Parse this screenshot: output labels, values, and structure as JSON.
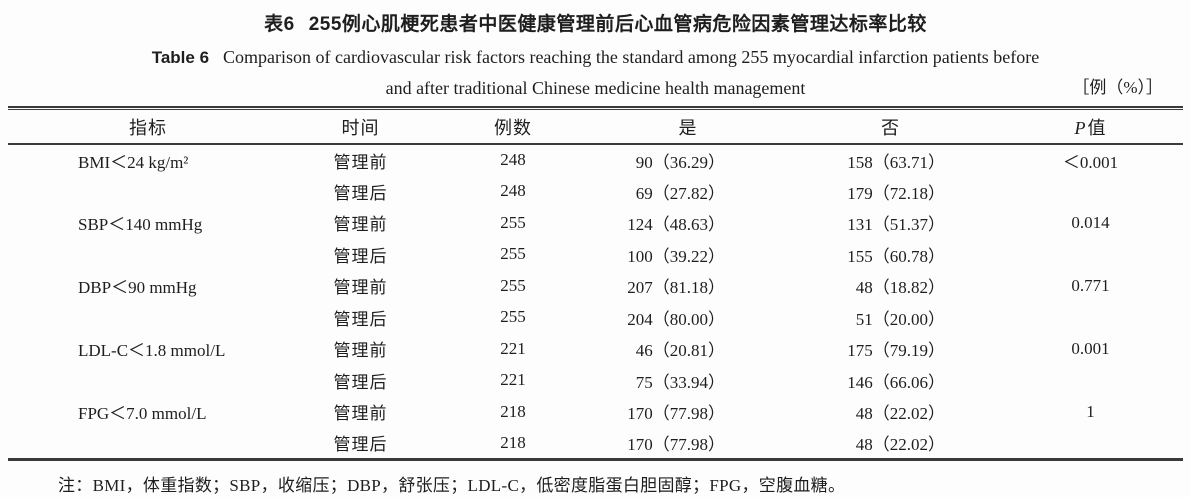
{
  "title": {
    "zh_label": "表6",
    "zh_text": "255例心肌梗死患者中医健康管理前后心血管病危险因素管理达标率比较",
    "en_label": "Table 6",
    "en_text1": "Comparison of cardiovascular risk factors reaching the standard among 255 myocardial infarction patients before",
    "en_text2": "and after traditional Chinese medicine health management",
    "unit": "［例（%）］"
  },
  "table": {
    "headers": {
      "indicator": "指标",
      "time": "时间",
      "n": "例数",
      "yes": "是",
      "no": "否",
      "p_symbol": "P",
      "p_suffix": "值"
    },
    "rows": [
      {
        "indicator": "BMI＜24 kg/m²",
        "time": "管理前",
        "n": "248",
        "yes": "90（36.29）",
        "no": "158（63.71）",
        "p": "＜0.001"
      },
      {
        "indicator": "",
        "time": "管理后",
        "n": "248",
        "yes": "69（27.82）",
        "no": "179（72.18）",
        "p": ""
      },
      {
        "indicator": "SBP＜140 mmHg",
        "time": "管理前",
        "n": "255",
        "yes": "124（48.63）",
        "no": "131（51.37）",
        "p": "0.014"
      },
      {
        "indicator": "",
        "time": "管理后",
        "n": "255",
        "yes": "100（39.22）",
        "no": "155（60.78）",
        "p": ""
      },
      {
        "indicator": "DBP＜90 mmHg",
        "time": "管理前",
        "n": "255",
        "yes": "207（81.18）",
        "no": "48（18.82）",
        "p": "0.771"
      },
      {
        "indicator": "",
        "time": "管理后",
        "n": "255",
        "yes": "204（80.00）",
        "no": "51（20.00）",
        "p": ""
      },
      {
        "indicator": "LDL-C＜1.8 mmol/L",
        "time": "管理前",
        "n": "221",
        "yes": "46（20.81）",
        "no": "175（79.19）",
        "p": "0.001"
      },
      {
        "indicator": "",
        "time": "管理后",
        "n": "221",
        "yes": "75（33.94）",
        "no": "146（66.06）",
        "p": ""
      },
      {
        "indicator": "FPG＜7.0 mmol/L",
        "time": "管理前",
        "n": "218",
        "yes": "170（77.98）",
        "no": "48（22.02）",
        "p": "1"
      },
      {
        "indicator": "",
        "time": "管理后",
        "n": "218",
        "yes": "170（77.98）",
        "no": "48（22.02）",
        "p": ""
      }
    ]
  },
  "footnote": {
    "text": "注：BMI，体重指数；SBP，收缩压；DBP，舒张压；LDL-C，低密度脂蛋白胆固醇；FPG，空腹血糖。"
  },
  "colors": {
    "text": "#1e1e1e",
    "rule": "#3a3a3a",
    "background": "#fdfdfd"
  }
}
